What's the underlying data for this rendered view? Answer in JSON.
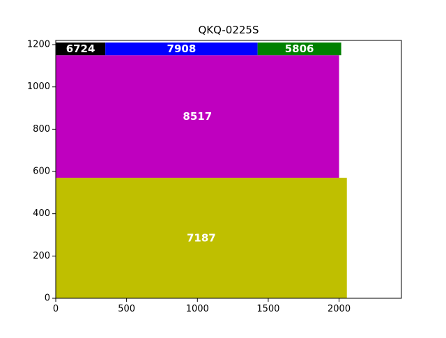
{
  "chart_data": {
    "type": "treemap",
    "title": "QKQ-0225S",
    "xlim": [
      0,
      2440
    ],
    "ylim": [
      0,
      1220
    ],
    "xticks": [
      0,
      500,
      1000,
      1500,
      2000
    ],
    "yticks": [
      0,
      200,
      400,
      600,
      800,
      1000,
      1200
    ],
    "grid": false,
    "rectangles": [
      {
        "label": "7187",
        "x0": 0,
        "y0": 0,
        "x1": 2055,
        "y1": 570,
        "color": "#bfbf00"
      },
      {
        "label": "8517",
        "x0": 0,
        "y0": 570,
        "x1": 2000,
        "y1": 1150,
        "color": "#bf00bf"
      },
      {
        "label": "6724",
        "x0": 0,
        "y0": 1150,
        "x1": 350,
        "y1": 1210,
        "color": "#000000"
      },
      {
        "label": "7908",
        "x0": 350,
        "y0": 1150,
        "x1": 1425,
        "y1": 1210,
        "color": "#0000ff"
      },
      {
        "label": "5806",
        "x0": 1425,
        "y0": 1150,
        "x1": 2015,
        "y1": 1210,
        "color": "#008000"
      }
    ]
  }
}
